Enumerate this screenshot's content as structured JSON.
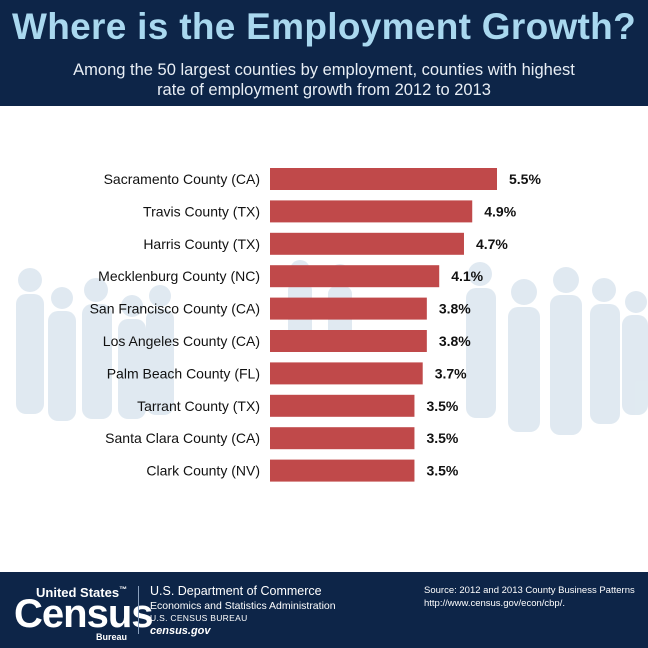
{
  "header": {
    "title": "Where is the Employment Growth?",
    "subtitle": "Among the 50 largest counties by employment, counties with highest rate of employment growth from 2012 to 2013"
  },
  "chart_data": {
    "type": "bar",
    "orientation": "horizontal",
    "categories": [
      "Sacramento County (CA)",
      "Travis County (TX)",
      "Harris County (TX)",
      "Mecklenburg County (NC)",
      "San Francisco County (CA)",
      "Los Angeles County (CA)",
      "Palm Beach County (FL)",
      "Tarrant County (TX)",
      "Santa Clara County (CA)",
      "Clark County (NV)"
    ],
    "values": [
      5.5,
      4.9,
      4.7,
      4.1,
      3.8,
      3.8,
      3.7,
      3.5,
      3.5,
      3.5
    ],
    "value_labels": [
      "5.5%",
      "4.9%",
      "4.7%",
      "4.1%",
      "3.8%",
      "3.8%",
      "3.7%",
      "3.5%",
      "3.5%",
      "3.5%"
    ],
    "xlim": [
      0,
      5.5
    ],
    "bar_color": "#c0494a"
  },
  "footer": {
    "logo_top": "United States",
    "logo_trademark": "™",
    "logo_main": "Census",
    "logo_bureau": "Bureau",
    "department": "U.S. Department of Commerce",
    "administration": "Economics and Statistics Administration",
    "bureau": "U.S. CENSUS BUREAU",
    "website": "census.gov",
    "source_line1": "Source: 2012 and 2013 County Business Patterns",
    "source_line2": "http://www.census.gov/econ/cbp/."
  },
  "colors": {
    "navy": "#0d2548",
    "title_blue": "#a9d8ef",
    "silhouette": "#dbe6ef"
  }
}
